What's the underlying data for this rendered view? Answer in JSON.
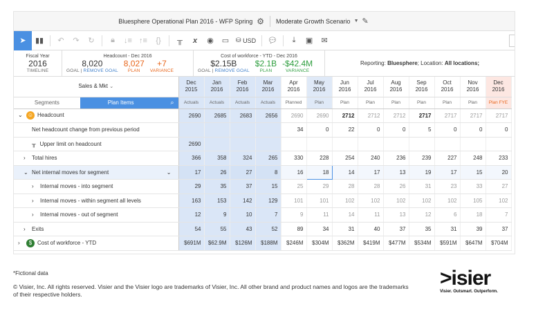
{
  "titlebar": {
    "plan": "Bluesphere Operational Plan 2016 - WFP Spring",
    "scenario": "Moderate Growth Scenario"
  },
  "toolbar": {
    "currency": "USD"
  },
  "kpi": {
    "fiscal": {
      "label": "Fiscal Year",
      "value": "2016",
      "sub": "TIMELINE"
    },
    "headcount": {
      "label": "Headcount - Dec 2016",
      "goal": "8,020",
      "goal_label": "GOAL",
      "remove_goal": "REMOVE GOAL",
      "plan": "8,027",
      "plan_label": "PLAN",
      "variance": "+7",
      "variance_label": "VARIANCE",
      "sep": "|"
    },
    "cost": {
      "label": "Cost of workforce - YTD - Dec 2016",
      "goal": "$2.15B",
      "goal_label": "GOAL",
      "remove_goal": "REMOVE GOAL",
      "plan": "$2.1B",
      "plan_label": "PLAN",
      "variance": "-$42.4M",
      "variance_label": "VARIANCE",
      "sep": "|"
    },
    "reporting": {
      "prefix": "Reporting:",
      "org": "Bluesphere",
      "mid": "; Location:",
      "loc": "All locations;"
    }
  },
  "segment": {
    "title": "Sales & Mkt",
    "tab_segments": "Segments",
    "tab_plan": "Plan Items"
  },
  "columns": [
    {
      "m": "Dec",
      "y": "2015",
      "t": "Actuals"
    },
    {
      "m": "Jan",
      "y": "2016",
      "t": "Actuals"
    },
    {
      "m": "Feb",
      "y": "2016",
      "t": "Actuals"
    },
    {
      "m": "Mar",
      "y": "2016",
      "t": "Actuals"
    },
    {
      "m": "Apr",
      "y": "2016",
      "t": "Planned"
    },
    {
      "m": "May",
      "y": "2016",
      "t": "Plan"
    },
    {
      "m": "Jun",
      "y": "2016",
      "t": "Plan"
    },
    {
      "m": "Jul",
      "y": "2016",
      "t": "Plan"
    },
    {
      "m": "Aug",
      "y": "2016",
      "t": "Plan"
    },
    {
      "m": "Sep",
      "y": "2016",
      "t": "Plan"
    },
    {
      "m": "Oct",
      "y": "2016",
      "t": "Plan"
    },
    {
      "m": "Nov",
      "y": "2016",
      "t": "Plan"
    },
    {
      "m": "Dec",
      "y": "2016",
      "t": "Plan FYE"
    }
  ],
  "rows": [
    {
      "label": "Headcount",
      "values": [
        "2690",
        "2685",
        "2683",
        "2656",
        "2690",
        "2690",
        "2712",
        "2712",
        "2712",
        "2717",
        "2717",
        "2717",
        "2717"
      ]
    },
    {
      "label": "Net headcount change from previous period",
      "values": [
        "",
        "",
        "",
        "",
        "34",
        "0",
        "22",
        "0",
        "0",
        "5",
        "0",
        "0",
        "0"
      ]
    },
    {
      "label": "Upper limit on headcount",
      "values": [
        "2690",
        "",
        "",
        "",
        "",
        "",
        "",
        "",
        "",
        "",
        "",
        "",
        ""
      ]
    },
    {
      "label": "Total hires",
      "values": [
        "366",
        "358",
        "324",
        "265",
        "330",
        "228",
        "254",
        "240",
        "236",
        "239",
        "227",
        "248",
        "233"
      ]
    },
    {
      "label": "Net internal moves for segment",
      "values": [
        "17",
        "26",
        "27",
        "8",
        "16",
        "18",
        "14",
        "17",
        "13",
        "19",
        "17",
        "15",
        "20"
      ]
    },
    {
      "label": "Internal moves - into segment",
      "values": [
        "29",
        "35",
        "37",
        "15",
        "25",
        "29",
        "28",
        "28",
        "26",
        "31",
        "23",
        "33",
        "27"
      ]
    },
    {
      "label": "Internal moves - within segment all levels",
      "values": [
        "163",
        "153",
        "142",
        "129",
        "101",
        "101",
        "102",
        "102",
        "102",
        "102",
        "102",
        "105",
        "102"
      ]
    },
    {
      "label": "Internal moves - out of segment",
      "values": [
        "12",
        "9",
        "10",
        "7",
        "9",
        "11",
        "14",
        "11",
        "13",
        "12",
        "6",
        "18",
        "7"
      ]
    },
    {
      "label": "Exits",
      "values": [
        "54",
        "55",
        "43",
        "52",
        "89",
        "34",
        "31",
        "40",
        "37",
        "35",
        "31",
        "39",
        "37"
      ]
    },
    {
      "label": "Cost of workforce - YTD",
      "values": [
        "$691M",
        "$62.9M",
        "$126M",
        "$188M",
        "$246M",
        "$304M",
        "$362M",
        "$419M",
        "$477M",
        "$534M",
        "$591M",
        "$647M",
        "$704M"
      ]
    }
  ],
  "footer": {
    "note": "*Fictional data",
    "copyright": "© Visier, Inc. All rights reserved. Visier and the Visier logo are trademarks of Visier, Inc. All other brand and product names and logos are the trademarks of their respective holders.",
    "brand": ">isier",
    "tagline": "Visier. Outsmart. Outperform."
  },
  "colors": {
    "accent": "#4a90e2",
    "orange": "#e8651a",
    "green": "#2e9e3e",
    "selected_col": "#dae6f7",
    "fye": "#fde7e2"
  }
}
